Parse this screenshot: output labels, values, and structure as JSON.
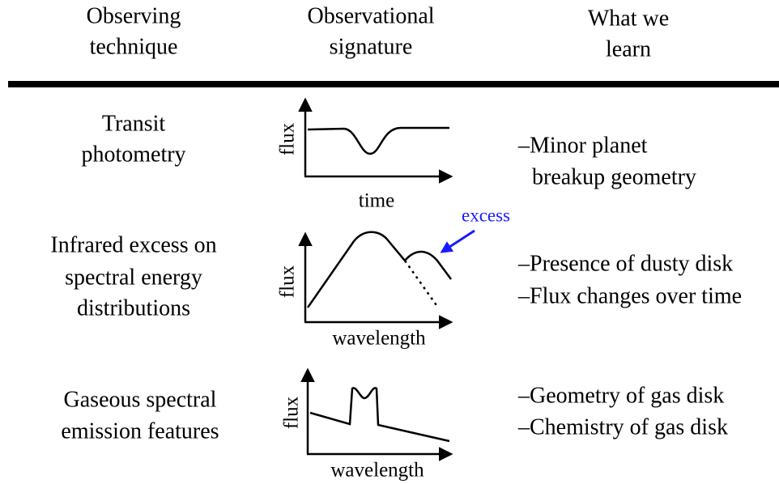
{
  "headers": [
    [
      "Observing",
      "technique"
    ],
    [
      "Observational",
      "signature"
    ],
    [
      "What we",
      "learn"
    ]
  ],
  "rows": [
    {
      "technique": [
        "Transit",
        "photometry"
      ],
      "y_label": "flux",
      "x_label": "time",
      "learn": [
        "–Minor planet",
        "breakup geometry"
      ]
    },
    {
      "technique": [
        "Infrared excess on",
        "spectral energy",
        "distributions"
      ],
      "y_label": "flux",
      "x_label": "wavelength",
      "annotation": "excess",
      "learn": [
        "–Presence of dusty disk",
        "–Flux changes over time"
      ]
    },
    {
      "technique": [
        "Gaseous spectral",
        "emission features"
      ],
      "y_label": "flux",
      "x_label": "wavelength",
      "learn": [
        "–Geometry of gas disk",
        "–Chemistry of gas disk"
      ]
    }
  ]
}
